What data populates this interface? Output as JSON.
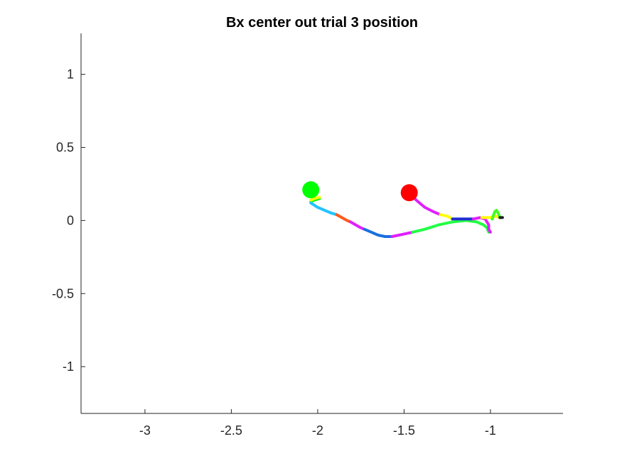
{
  "chart_data": {
    "type": "line",
    "title": "Bx  center out trial 3 position",
    "xlabel": "",
    "ylabel": "",
    "xlim": [
      -3.37,
      -0.58
    ],
    "ylim": [
      -1.32,
      1.28
    ],
    "x_ticks": [
      -3,
      -2.5,
      -2,
      -1.5,
      -1
    ],
    "x_tick_labels": [
      "-3",
      "-2.5",
      "-2",
      "-1.5",
      "-1"
    ],
    "y_ticks": [
      1,
      0.5,
      0,
      -0.5,
      -1
    ],
    "y_tick_labels": [
      "1",
      "0.5",
      "0",
      "-0.5",
      "-1"
    ],
    "grid": false,
    "series": [
      {
        "color": "#00ff00",
        "x": [
          -2.04,
          -2.02,
          -1.99
        ],
        "y": [
          0.13,
          0.14,
          0.15
        ]
      },
      {
        "color": "#ffff00",
        "x": [
          -2.04,
          -2.02,
          -1.99
        ],
        "y": [
          0.14,
          0.15,
          0.16
        ]
      },
      {
        "color": "#22c4ff",
        "x": [
          -2.04,
          -2.0,
          -1.96,
          -1.92,
          -1.89
        ],
        "y": [
          0.12,
          0.09,
          0.07,
          0.05,
          0.04
        ]
      },
      {
        "color": "#ff5a1e",
        "x": [
          -1.89,
          -1.86,
          -1.83,
          -1.81
        ],
        "y": [
          0.04,
          0.02,
          0.0,
          -0.01
        ]
      },
      {
        "color": "#e020ff",
        "x": [
          -1.81,
          -1.78,
          -1.75,
          -1.73
        ],
        "y": [
          -0.01,
          -0.03,
          -0.05,
          -0.06
        ]
      },
      {
        "color": "#1a6fe0",
        "x": [
          -1.73,
          -1.69,
          -1.65,
          -1.61,
          -1.57
        ],
        "y": [
          -0.06,
          -0.08,
          -0.1,
          -0.11,
          -0.11
        ]
      },
      {
        "color": "#e020ff",
        "x": [
          -1.57,
          -1.53,
          -1.49,
          -1.45
        ],
        "y": [
          -0.11,
          -0.1,
          -0.09,
          -0.08
        ]
      },
      {
        "color": "#22ff44",
        "x": [
          -1.45,
          -1.38,
          -1.3,
          -1.22,
          -1.14,
          -1.08,
          -1.04,
          -1.02,
          -1.01
        ],
        "y": [
          -0.08,
          -0.06,
          -0.03,
          -0.01,
          0.0,
          -0.01,
          -0.03,
          -0.05,
          -0.08
        ]
      },
      {
        "color": "#e020ff",
        "x": [
          -1.47,
          -1.43,
          -1.38,
          -1.33,
          -1.29
        ],
        "y": [
          0.19,
          0.14,
          0.09,
          0.06,
          0.04
        ]
      },
      {
        "color": "#ffff00",
        "x": [
          -1.29,
          -1.25,
          -1.22
        ],
        "y": [
          0.04,
          0.03,
          0.01
        ]
      },
      {
        "color": "#1f2fd0",
        "x": [
          -1.22,
          -1.18,
          -1.14,
          -1.1
        ],
        "y": [
          0.01,
          0.01,
          0.01,
          0.01
        ]
      },
      {
        "color": "#e020ff",
        "x": [
          -1.1,
          -1.06,
          -1.03,
          -1.01,
          -1.01,
          -1.0
        ],
        "y": [
          0.01,
          0.02,
          0.01,
          -0.03,
          -0.06,
          -0.08
        ]
      },
      {
        "color": "#ffff00",
        "x": [
          -1.05,
          -1.0,
          -0.97,
          -0.95
        ],
        "y": [
          0.02,
          0.02,
          0.03,
          0.02
        ]
      },
      {
        "color": "#40ff20",
        "x": [
          -0.99,
          -0.975,
          -0.965,
          -0.955,
          -0.945
        ],
        "y": [
          0.01,
          0.06,
          0.07,
          0.05,
          0.02
        ]
      },
      {
        "color": "#222222",
        "x": [
          -0.945,
          -0.93
        ],
        "y": [
          0.02,
          0.02
        ]
      }
    ],
    "markers": [
      {
        "color": "#00ff00",
        "x": -2.04,
        "y": 0.21
      },
      {
        "color": "#ff0000",
        "x": -1.47,
        "y": 0.19
      }
    ]
  }
}
